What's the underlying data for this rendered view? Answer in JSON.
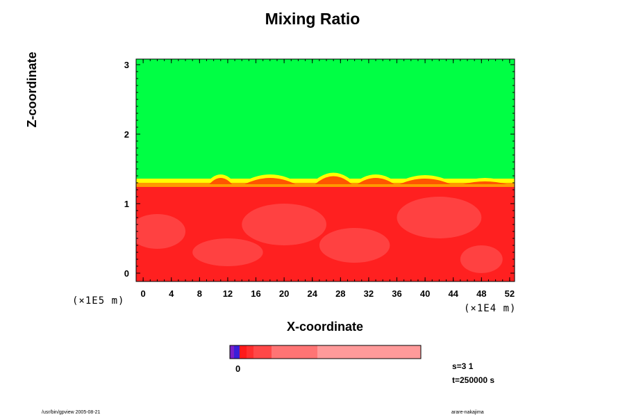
{
  "chart_data": {
    "type": "heatmap",
    "title": "Mixing Ratio",
    "xlabel": "X-coordinate",
    "ylabel": "Z-coordinate",
    "x_scale_label": "(×1E4 m)",
    "y_scale_label": "(×1E5 m)",
    "xlim": [
      -1,
      52.7
    ],
    "ylim": [
      -0.12,
      3.08
    ],
    "x_ticks": [
      "0",
      "4",
      "8",
      "12",
      "16",
      "20",
      "24",
      "28",
      "32",
      "36",
      "40",
      "44",
      "48",
      "52"
    ],
    "y_ticks": [
      "0",
      "1",
      "2",
      "3"
    ],
    "colorbar": {
      "zero_label": "0",
      "colors": [
        "#7a1fc8",
        "#3a1fd8",
        "#ff1a1a",
        "#ff2e2e",
        "#ff4848",
        "#ff7474",
        "#ff9a9a"
      ]
    },
    "regions": {
      "upper_color": "#00ff44",
      "lower_color": "#ff2020",
      "transition_colors": [
        "#ffff00",
        "#ff9900",
        "#ff5500"
      ],
      "interface_height": 1.3
    },
    "annotations": {
      "step": "s=3 1",
      "time": "t=250000 s"
    }
  },
  "footer": {
    "left": "/usr/bin/gpview 2005-08-21",
    "right": "arare-nakajima"
  }
}
